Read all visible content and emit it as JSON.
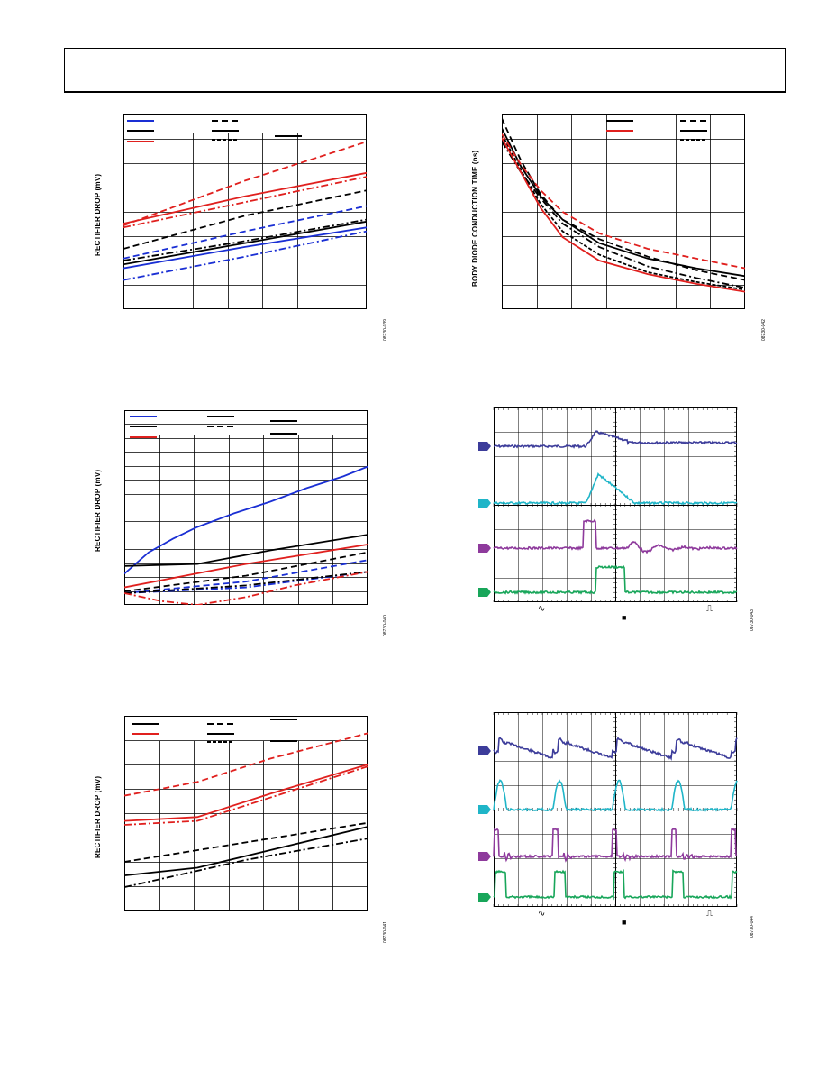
{
  "page": {
    "header": {
      "text": ""
    }
  },
  "charts": {
    "tl": {
      "ylabel": "RECTIFIER DROP (mV)",
      "fig_id": "08730-039"
    },
    "tr": {
      "ylabel": "BODY DIODE CONDUCTION TIME (ns)",
      "fig_id": "08730-042"
    },
    "ml": {
      "ylabel": "RECTIFIER DROP (mV)",
      "fig_id": "08730-040"
    },
    "mr": {
      "fig_id": "08730-043"
    },
    "bl": {
      "ylabel": "RECTIFIER DROP (mV)",
      "fig_id": "08730-041"
    },
    "br": {
      "fig_id": "08730-044"
    }
  },
  "scope_marks": {
    "ac_symbol": "∿",
    "edge_symbol": "⎍",
    "trigger_marker": "■"
  },
  "colors": {
    "blue": "#1a2fd4",
    "black": "#000000",
    "red": "#e0201e",
    "scope_ch1": "#3c3c9a",
    "scope_ch2": "#1fb5c8",
    "scope_ch3": "#8e3a9c",
    "scope_ch4": "#18a65a"
  },
  "chart_data": [
    {
      "type": "line",
      "series": [
        {
          "color": "blue",
          "dash": "solid",
          "x": [
            0,
            0.5,
            1
          ],
          "y": [
            0.21,
            0.32,
            0.42
          ]
        },
        {
          "color": "blue",
          "dash": "dashdot",
          "x": [
            0,
            0.5,
            1
          ],
          "y": [
            0.15,
            0.27,
            0.4
          ]
        },
        {
          "color": "blue",
          "dash": "dash",
          "x": [
            0,
            0.5,
            1
          ],
          "y": [
            0.26,
            0.4,
            0.53
          ]
        },
        {
          "color": "black",
          "dash": "solid",
          "x": [
            0,
            0.5,
            1
          ],
          "y": [
            0.23,
            0.34,
            0.45
          ]
        },
        {
          "color": "black",
          "dash": "dashdot",
          "x": [
            0,
            0.5,
            1
          ],
          "y": [
            0.25,
            0.35,
            0.46
          ]
        },
        {
          "color": "black",
          "dash": "dash",
          "x": [
            0,
            0.5,
            1
          ],
          "y": [
            0.31,
            0.48,
            0.61
          ]
        },
        {
          "color": "red",
          "dash": "solid",
          "x": [
            0,
            0.5,
            1
          ],
          "y": [
            0.44,
            0.58,
            0.7
          ]
        },
        {
          "color": "red",
          "dash": "dashdot",
          "x": [
            0,
            0.5,
            1
          ],
          "y": [
            0.42,
            0.55,
            0.68
          ]
        },
        {
          "color": "red",
          "dash": "dash",
          "x": [
            0,
            0.5,
            1
          ],
          "y": [
            0.43,
            0.66,
            0.86
          ]
        }
      ]
    },
    {
      "type": "line",
      "series": [
        {
          "color": "black",
          "dash": "solid",
          "x": [
            0,
            0.08,
            0.16,
            0.25,
            0.4,
            0.6,
            0.8,
            1
          ],
          "y": [
            0.93,
            0.73,
            0.58,
            0.46,
            0.34,
            0.26,
            0.21,
            0.17
          ]
        },
        {
          "color": "black",
          "dash": "dash",
          "x": [
            0,
            0.08,
            0.16,
            0.25,
            0.4,
            0.6,
            0.8,
            1
          ],
          "y": [
            0.98,
            0.76,
            0.59,
            0.46,
            0.36,
            0.27,
            0.2,
            0.15
          ]
        },
        {
          "color": "black",
          "dash": "dashdot",
          "x": [
            0,
            0.08,
            0.16,
            0.25,
            0.4,
            0.6,
            0.8,
            1
          ],
          "y": [
            0.86,
            0.7,
            0.57,
            0.44,
            0.32,
            0.22,
            0.16,
            0.11
          ]
        },
        {
          "color": "black",
          "dash": "dash2",
          "x": [
            0,
            0.08,
            0.16,
            0.25,
            0.4,
            0.6,
            0.8,
            1
          ],
          "y": [
            0.9,
            0.71,
            0.54,
            0.4,
            0.28,
            0.19,
            0.14,
            0.1
          ]
        },
        {
          "color": "red",
          "dash": "solid",
          "x": [
            0,
            0.08,
            0.16,
            0.25,
            0.4,
            0.6,
            0.8,
            1
          ],
          "y": [
            0.88,
            0.7,
            0.52,
            0.37,
            0.25,
            0.18,
            0.13,
            0.09
          ]
        },
        {
          "color": "red",
          "dash": "dash",
          "x": [
            0,
            0.08,
            0.16,
            0.25,
            0.4,
            0.6,
            0.8,
            1
          ],
          "y": [
            0.9,
            0.74,
            0.61,
            0.5,
            0.39,
            0.31,
            0.26,
            0.21
          ]
        }
      ]
    },
    {
      "type": "line",
      "series": [
        {
          "color": "blue",
          "dash": "solid",
          "x": [
            0,
            0.1,
            0.2,
            0.3,
            0.45,
            0.6,
            0.75,
            0.9,
            1
          ],
          "y": [
            0.16,
            0.27,
            0.34,
            0.4,
            0.47,
            0.53,
            0.6,
            0.66,
            0.71
          ]
        },
        {
          "color": "blue",
          "dash": "dash",
          "x": [
            0,
            0.5,
            1
          ],
          "y": [
            0.06,
            0.12,
            0.23
          ]
        },
        {
          "color": "blue",
          "dash": "dashdot",
          "x": [
            0,
            0.5,
            1
          ],
          "y": [
            0.06,
            0.09,
            0.17
          ]
        },
        {
          "color": "black",
          "dash": "solid",
          "x": [
            0,
            0.3,
            0.6,
            1
          ],
          "y": [
            0.2,
            0.21,
            0.28,
            0.36
          ]
        },
        {
          "color": "black",
          "dash": "dash",
          "x": [
            0,
            0.5,
            1
          ],
          "y": [
            0.07,
            0.15,
            0.27
          ]
        },
        {
          "color": "black",
          "dash": "dashdot",
          "x": [
            0,
            0.5,
            1
          ],
          "y": [
            0.06,
            0.1,
            0.17
          ]
        },
        {
          "color": "red",
          "dash": "solid",
          "x": [
            0,
            0.5,
            1
          ],
          "y": [
            0.09,
            0.21,
            0.31
          ]
        },
        {
          "color": "red",
          "dash": "dashdot",
          "x": [
            0,
            0.15,
            0.3,
            0.5,
            0.7,
            1
          ],
          "y": [
            0.06,
            0.02,
            0.0,
            0.04,
            0.1,
            0.17
          ]
        }
      ]
    },
    {
      "type": "line",
      "series": [
        {
          "color": "black",
          "dash": "solid",
          "x": [
            0,
            0.3,
            0.6,
            1
          ],
          "y": [
            0.18,
            0.22,
            0.31,
            0.43
          ]
        },
        {
          "color": "black",
          "dash": "dash",
          "x": [
            0,
            0.5,
            1
          ],
          "y": [
            0.25,
            0.35,
            0.45
          ]
        },
        {
          "color": "black",
          "dash": "dashdot",
          "x": [
            0,
            0.5,
            1
          ],
          "y": [
            0.12,
            0.26,
            0.37
          ]
        },
        {
          "color": "red",
          "dash": "solid",
          "x": [
            0,
            0.3,
            0.6,
            1
          ],
          "y": [
            0.46,
            0.48,
            0.6,
            0.75
          ]
        },
        {
          "color": "red",
          "dash": "dashdot",
          "x": [
            0,
            0.3,
            0.6,
            1
          ],
          "y": [
            0.44,
            0.46,
            0.58,
            0.74
          ]
        },
        {
          "color": "red",
          "dash": "dash",
          "x": [
            0,
            0.3,
            0.6,
            1
          ],
          "y": [
            0.59,
            0.66,
            0.78,
            0.91
          ]
        }
      ]
    }
  ]
}
